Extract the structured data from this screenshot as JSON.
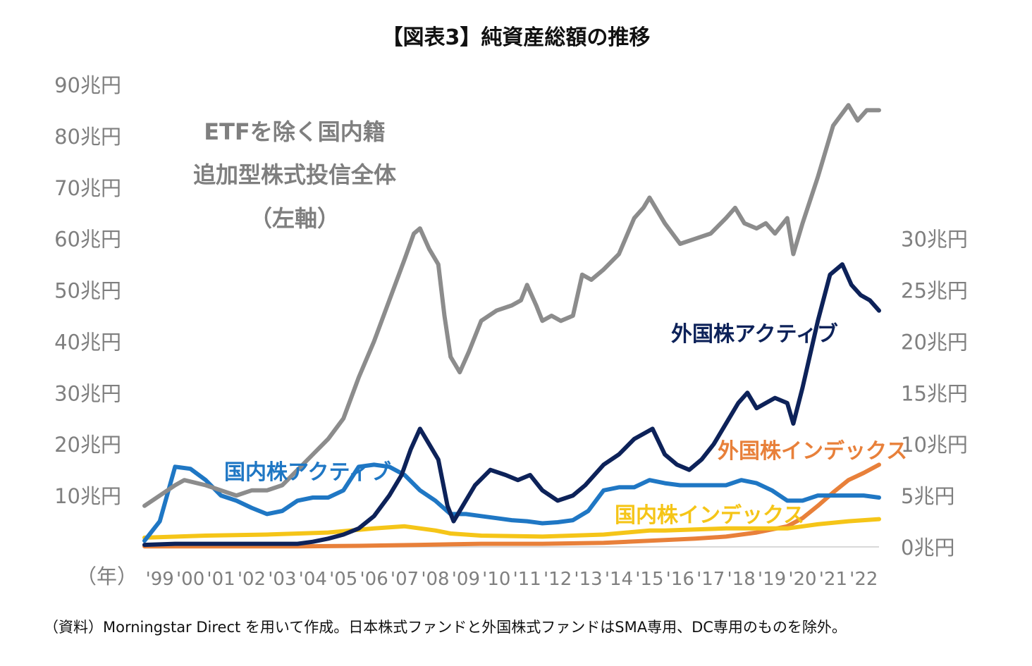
{
  "chart_data": {
    "type": "line",
    "title": "【図表3】純資産総額の推移",
    "source_note": "（資料）Morningstar Direct を用いて作成。日本株式ファンドと外国株式ファンドはSMA専用、DC専用のものを除外。",
    "x_unit_label": "（年）",
    "x_tick_labels": [
      "'99",
      "'00",
      "'01",
      "'02",
      "'03",
      "'04",
      "'05",
      "'06",
      "'07",
      "'08",
      "'09",
      "'10",
      "'11",
      "'12",
      "'13",
      "'14",
      "'15",
      "'16",
      "'17",
      "'18",
      "'19",
      "'20",
      "'21",
      "'22"
    ],
    "x_range": [
      1999.0,
      2023.0
    ],
    "y_left": {
      "ticks": [
        10,
        20,
        30,
        40,
        50,
        60,
        70,
        80,
        90
      ],
      "tick_labels": [
        "10兆円",
        "20兆円",
        "30兆円",
        "40兆円",
        "50兆円",
        "60兆円",
        "70兆円",
        "80兆円",
        "90兆円"
      ],
      "range": [
        0,
        90
      ]
    },
    "y_right": {
      "ticks": [
        0,
        5,
        10,
        15,
        20,
        25,
        30
      ],
      "tick_labels": [
        "0兆円",
        "5兆円",
        "10兆円",
        "15兆円",
        "20兆円",
        "25兆円",
        "30兆円"
      ],
      "range": [
        0,
        30
      ]
    },
    "grid": false,
    "legend": "none (series labelled directly on chart)",
    "series": [
      {
        "name": "ETFを除く国内籍 追加型株式投信全体 （左軸）",
        "label_lines": [
          "ETFを除く国内籍",
          "追加型株式投信全体",
          "（左軸）"
        ],
        "axis": "left",
        "color": "#8c8c8c",
        "x": [
          1999.0,
          1999.5,
          2000.0,
          2000.3,
          2001.0,
          2001.5,
          2002.0,
          2002.5,
          2003.0,
          2003.5,
          2004.0,
          2004.5,
          2005.0,
          2005.5,
          2006.0,
          2006.5,
          2007.0,
          2007.5,
          2007.8,
          2008.0,
          2008.3,
          2008.6,
          2008.8,
          2009.0,
          2009.3,
          2009.6,
          2010.0,
          2010.5,
          2011.0,
          2011.3,
          2011.5,
          2011.8,
          2012.0,
          2012.3,
          2012.6,
          2013.0,
          2013.3,
          2013.6,
          2014.0,
          2014.5,
          2015.0,
          2015.3,
          2015.5,
          2016.0,
          2016.5,
          2017.0,
          2017.5,
          2018.0,
          2018.3,
          2018.6,
          2019.0,
          2019.3,
          2019.6,
          2020.0,
          2020.2,
          2020.5,
          2021.0,
          2021.5,
          2022.0,
          2022.3,
          2022.6,
          2023.0
        ],
        "values": [
          8,
          10,
          12,
          13,
          12,
          11,
          10,
          11,
          11,
          12,
          15,
          18,
          21,
          25,
          33,
          40,
          48,
          56,
          61,
          62,
          58,
          55,
          45,
          37,
          34,
          38,
          44,
          46,
          47,
          48,
          51,
          47,
          44,
          45,
          44,
          45,
          53,
          52,
          54,
          57,
          64,
          66,
          68,
          63,
          59,
          60,
          61,
          64,
          66,
          63,
          62,
          63,
          61,
          64,
          57,
          63,
          72,
          82,
          86,
          83,
          85,
          85
        ]
      },
      {
        "name": "外国株アクティブ",
        "axis": "right",
        "color": "#0d2259",
        "x": [
          1999.0,
          2000.0,
          2001.0,
          2002.0,
          2003.0,
          2004.0,
          2004.5,
          2005.0,
          2005.5,
          2006.0,
          2006.5,
          2007.0,
          2007.4,
          2007.7,
          2008.0,
          2008.3,
          2008.6,
          2008.9,
          2009.1,
          2009.4,
          2009.8,
          2010.3,
          2010.8,
          2011.2,
          2011.6,
          2012.0,
          2012.5,
          2013.0,
          2013.4,
          2014.0,
          2014.5,
          2015.0,
          2015.3,
          2015.6,
          2016.0,
          2016.4,
          2016.8,
          2017.2,
          2017.6,
          2018.0,
          2018.4,
          2018.7,
          2019.0,
          2019.3,
          2019.6,
          2020.0,
          2020.2,
          2020.5,
          2021.0,
          2021.4,
          2021.8,
          2022.1,
          2022.4,
          2022.7,
          2023.0
        ],
        "values": [
          0.2,
          0.3,
          0.3,
          0.3,
          0.3,
          0.3,
          0.5,
          0.8,
          1.2,
          1.8,
          3.0,
          5.0,
          7.0,
          9.5,
          11.5,
          10.0,
          8.5,
          4.0,
          2.5,
          4.0,
          6.0,
          7.5,
          7.0,
          6.5,
          7.0,
          5.5,
          4.5,
          5.0,
          6.0,
          8.0,
          9.0,
          10.5,
          11.0,
          11.5,
          9.0,
          8.0,
          7.5,
          8.5,
          10.0,
          12.0,
          14.0,
          15.0,
          13.5,
          14.0,
          14.5,
          14.0,
          12.0,
          15.5,
          22.0,
          26.5,
          27.5,
          25.5,
          24.5,
          24.0,
          23.0
        ]
      },
      {
        "name": "外国株インデックス",
        "axis": "right",
        "color": "#e8803a",
        "x": [
          1999.0,
          2004.0,
          2006.0,
          2008.0,
          2010.0,
          2012.0,
          2014.0,
          2015.5,
          2017.0,
          2018.0,
          2019.0,
          2020.0,
          2020.5,
          2021.0,
          2021.5,
          2022.0,
          2022.5,
          2023.0
        ],
        "values": [
          0.05,
          0.05,
          0.1,
          0.2,
          0.3,
          0.3,
          0.4,
          0.6,
          0.8,
          1.0,
          1.4,
          2.0,
          2.8,
          4.0,
          5.3,
          6.5,
          7.2,
          8.0
        ]
      },
      {
        "name": "国内株アクティブ",
        "axis": "right",
        "color": "#1f77c4",
        "x": [
          1999.0,
          1999.5,
          2000.0,
          2000.5,
          2001.0,
          2001.5,
          2002.0,
          2002.5,
          2003.0,
          2003.5,
          2004.0,
          2004.5,
          2005.0,
          2005.5,
          2006.0,
          2006.5,
          2007.0,
          2007.5,
          2008.0,
          2008.5,
          2009.0,
          2009.5,
          2010.0,
          2010.5,
          2011.0,
          2011.5,
          2012.0,
          2012.5,
          2013.0,
          2013.5,
          2014.0,
          2014.5,
          2015.0,
          2015.5,
          2016.0,
          2016.5,
          2017.0,
          2017.5,
          2018.0,
          2018.5,
          2019.0,
          2019.5,
          2020.0,
          2020.5,
          2021.0,
          2021.5,
          2022.0,
          2022.5,
          2023.0
        ],
        "values": [
          0.6,
          2.5,
          7.8,
          7.6,
          6.5,
          5.0,
          4.5,
          3.8,
          3.2,
          3.5,
          4.5,
          4.8,
          4.8,
          5.5,
          7.8,
          8.0,
          7.8,
          7.0,
          5.5,
          4.5,
          3.2,
          3.2,
          3.0,
          2.8,
          2.6,
          2.5,
          2.3,
          2.4,
          2.6,
          3.5,
          5.5,
          5.8,
          5.8,
          6.5,
          6.2,
          6.0,
          6.0,
          6.0,
          6.0,
          6.5,
          6.2,
          5.5,
          4.5,
          4.5,
          5.0,
          5.0,
          5.0,
          5.0,
          4.8
        ]
      },
      {
        "name": "国内株インデックス",
        "axis": "right",
        "color": "#f5c518",
        "x": [
          1999.0,
          2001.0,
          2003.0,
          2005.0,
          2006.5,
          2007.5,
          2008.5,
          2009.0,
          2010.0,
          2012.0,
          2014.0,
          2015.5,
          2016.0,
          2017.0,
          2018.0,
          2019.0,
          2020.0,
          2021.0,
          2022.0,
          2023.0
        ],
        "values": [
          0.9,
          1.1,
          1.2,
          1.4,
          1.8,
          2.0,
          1.6,
          1.3,
          1.1,
          1.0,
          1.2,
          1.6,
          1.6,
          1.7,
          1.8,
          1.8,
          1.8,
          2.2,
          2.5,
          2.7
        ]
      }
    ]
  }
}
